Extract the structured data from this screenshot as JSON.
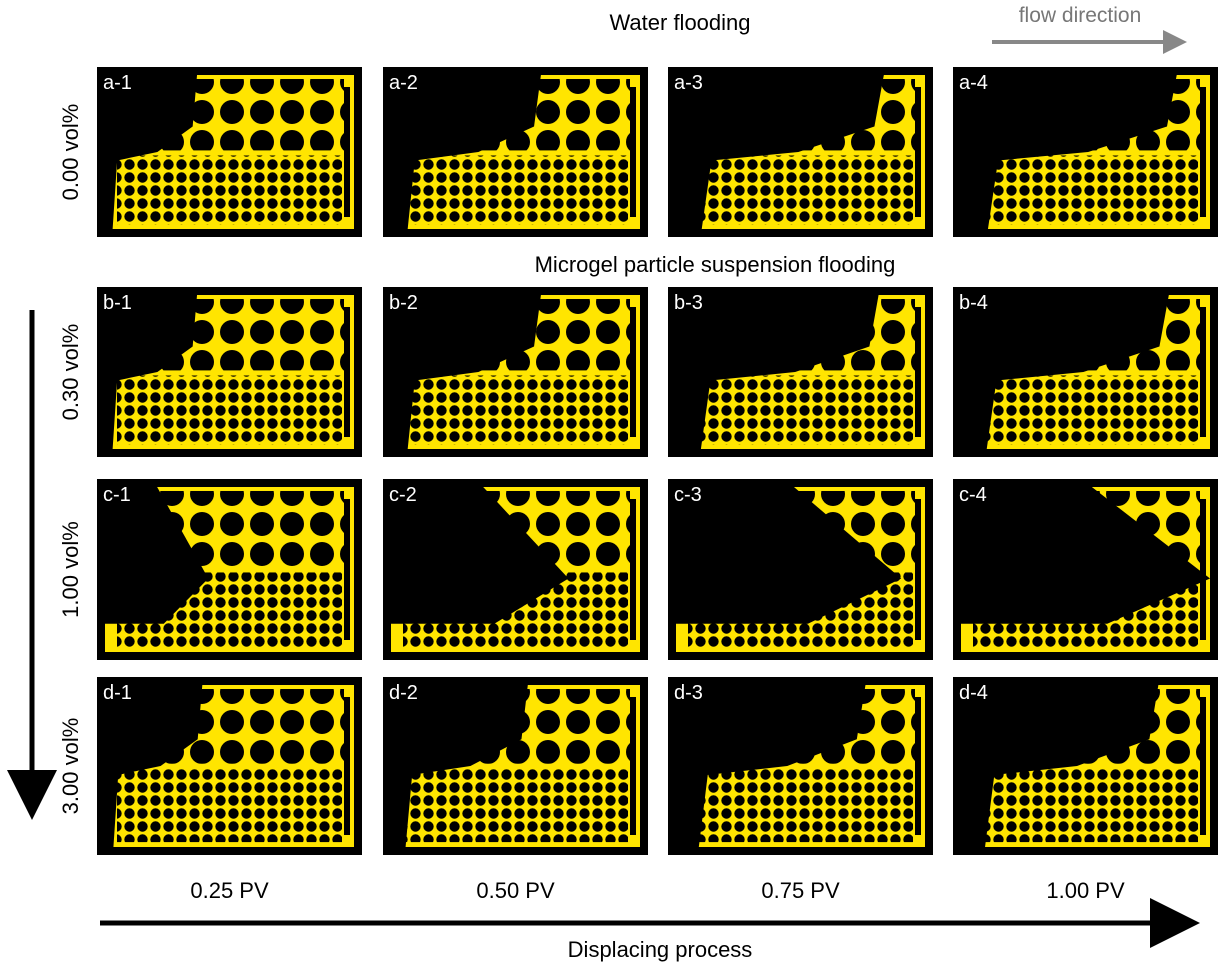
{
  "headers": {
    "water": "Water flooding",
    "flow": "flow direction",
    "microgel": "Microgel particle suspension flooding"
  },
  "rows": [
    {
      "label": "0.00 vol%",
      "panels": [
        "a-1",
        "a-2",
        "a-3",
        "a-4"
      ]
    },
    {
      "label": "0.30 vol%",
      "panels": [
        "b-1",
        "b-2",
        "b-3",
        "b-4"
      ]
    },
    {
      "label": "1.00 vol%",
      "panels": [
        "c-1",
        "c-2",
        "c-3",
        "c-4"
      ]
    },
    {
      "label": "3.00 vol%",
      "panels": [
        "d-1",
        "d-2",
        "d-3",
        "d-4"
      ]
    }
  ],
  "columns": [
    "0.25 PV",
    "0.50 PV",
    "0.75 PV",
    "1.00 PV"
  ],
  "x_axis": "Displacing process"
}
